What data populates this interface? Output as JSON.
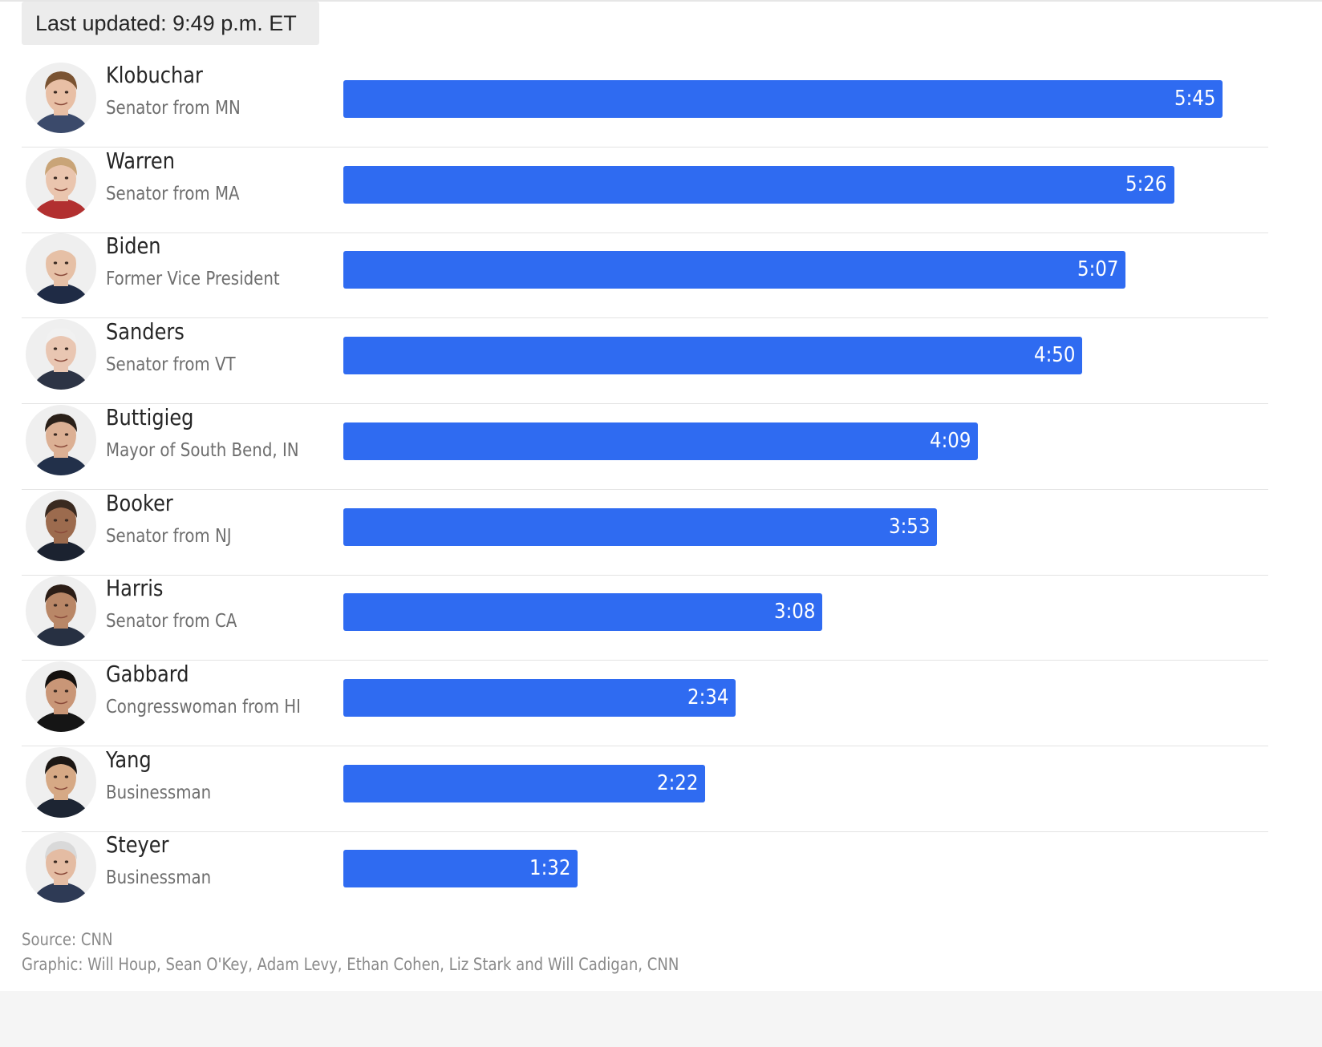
{
  "header": {
    "last_updated": "Last updated: 9:49 p.m. ET"
  },
  "chart_data": {
    "type": "bar",
    "orientation": "horizontal",
    "unit": "minutes:seconds",
    "color": "#2f6bf1",
    "categories": [
      "Klobuchar",
      "Warren",
      "Biden",
      "Sanders",
      "Buttigieg",
      "Booker",
      "Harris",
      "Gabbard",
      "Yang",
      "Steyer"
    ],
    "roles": [
      "Senator from MN",
      "Senator from MA",
      "Former Vice President",
      "Senator from VT",
      "Mayor of South Bend, IN",
      "Senator from NJ",
      "Senator from CA",
      "Congresswoman from HI",
      "Businessman",
      "Businessman"
    ],
    "labels": [
      "5:45",
      "5:26",
      "5:07",
      "4:50",
      "4:09",
      "3:53",
      "3:08",
      "2:34",
      "2:22",
      "1:32"
    ],
    "values": [
      345,
      326,
      307,
      290,
      249,
      233,
      188,
      154,
      142,
      92
    ],
    "xlim": [
      0,
      345
    ],
    "grid": false,
    "legend": "none"
  },
  "footer": {
    "source": "Source: CNN",
    "credits": "Graphic: Will Houp, Sean O'Key, Adam Levy, Ethan Cohen, Liz Stark and Will Cadigan, CNN"
  }
}
